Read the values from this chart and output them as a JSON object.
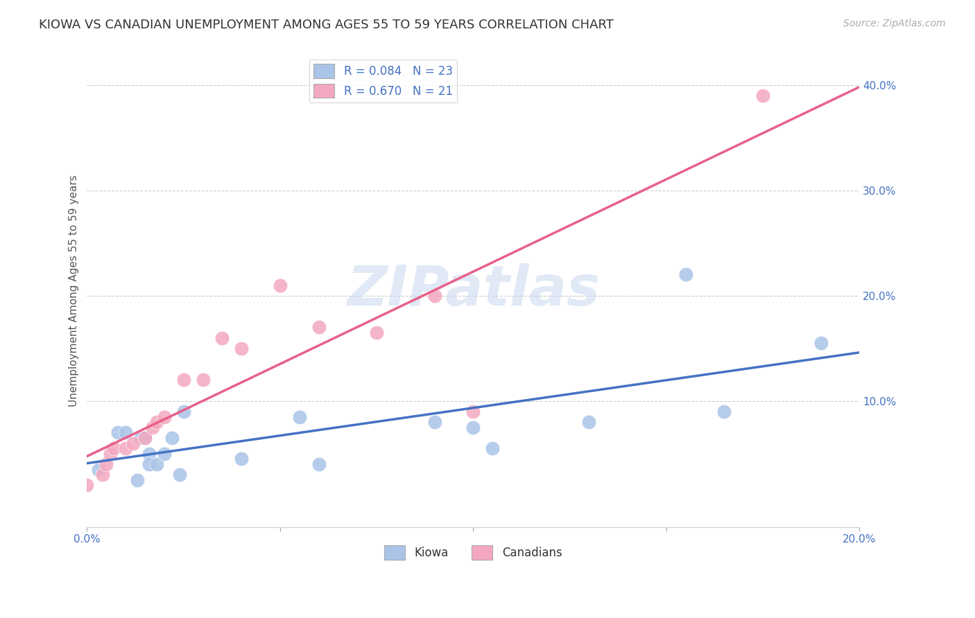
{
  "title": "KIOWA VS CANADIAN UNEMPLOYMENT AMONG AGES 55 TO 59 YEARS CORRELATION CHART",
  "source": "Source: ZipAtlas.com",
  "ylabel": "Unemployment Among Ages 55 to 59 years",
  "watermark": "ZIPatlas",
  "xlim": [
    0.0,
    0.2
  ],
  "ylim": [
    -0.02,
    0.43
  ],
  "xtick_positions": [
    0.0,
    0.05,
    0.1,
    0.15,
    0.2
  ],
  "xtick_labels": [
    "0.0%",
    "",
    "",
    "",
    "20.0%"
  ],
  "yticks": [
    0.1,
    0.2,
    0.3,
    0.4
  ],
  "kiowa_R": 0.084,
  "kiowa_N": 23,
  "canadian_R": 0.67,
  "canadian_N": 21,
  "kiowa_color": "#aac4e8",
  "canadian_color": "#f4a8bf",
  "kiowa_line_color": "#4472c4",
  "canadian_line_color": "#e8608a",
  "kiowa_x": [
    0.003,
    0.008,
    0.01,
    0.013,
    0.014,
    0.015,
    0.016,
    0.016,
    0.018,
    0.02,
    0.022,
    0.024,
    0.025,
    0.04,
    0.055,
    0.06,
    0.09,
    0.1,
    0.105,
    0.13,
    0.155,
    0.165,
    0.19
  ],
  "kiowa_y": [
    0.035,
    0.07,
    0.07,
    0.025,
    0.065,
    0.065,
    0.05,
    0.04,
    0.04,
    0.05,
    0.065,
    0.03,
    0.09,
    0.045,
    0.085,
    0.04,
    0.08,
    0.075,
    0.055,
    0.08,
    0.22,
    0.09,
    0.155
  ],
  "canadian_x": [
    0.0,
    0.004,
    0.005,
    0.006,
    0.007,
    0.01,
    0.012,
    0.015,
    0.017,
    0.018,
    0.02,
    0.025,
    0.03,
    0.035,
    0.04,
    0.05,
    0.06,
    0.075,
    0.09,
    0.1,
    0.175
  ],
  "canadian_y": [
    0.02,
    0.03,
    0.04,
    0.05,
    0.055,
    0.055,
    0.06,
    0.065,
    0.075,
    0.08,
    0.085,
    0.12,
    0.12,
    0.16,
    0.15,
    0.21,
    0.17,
    0.165,
    0.2,
    0.09,
    0.39
  ],
  "grid_color": "#cccccc",
  "background_color": "#ffffff",
  "title_fontsize": 13,
  "axis_label_fontsize": 11,
  "tick_fontsize": 11,
  "legend_fontsize": 12
}
